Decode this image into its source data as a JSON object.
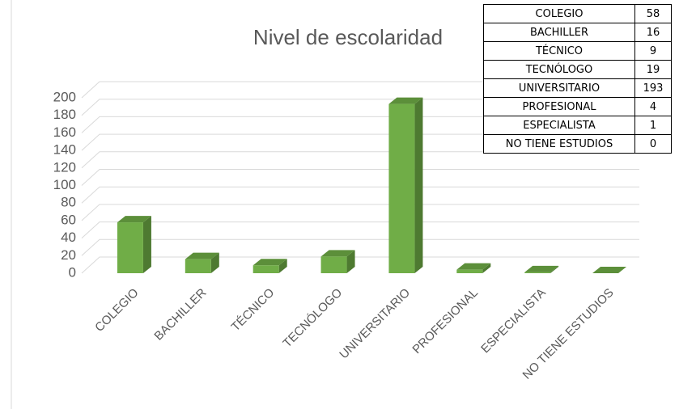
{
  "chart_data": {
    "type": "bar",
    "title": "Nivel de escolaridad",
    "categories": [
      "COLEGIO",
      "BACHILLER",
      "TÉCNICO",
      "TECNÓLOGO",
      "UNIVERSITARIO",
      "PROFESIONAL",
      "ESPECIALISTA",
      "NO TIENE ESTUDIOS"
    ],
    "values": [
      58,
      16,
      9,
      19,
      193,
      4,
      1,
      0
    ],
    "color": "#70ad47",
    "ylim": [
      0,
      200
    ],
    "yticks": [
      0,
      20,
      40,
      60,
      80,
      100,
      120,
      140,
      160,
      180,
      200
    ],
    "grid": true
  }
}
